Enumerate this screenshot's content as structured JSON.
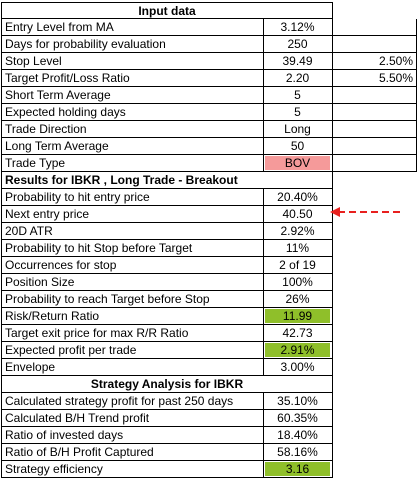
{
  "sections": {
    "input_title": "Input data",
    "results_title": "Results for IBKR , Long Trade - Breakout",
    "strategy_title": "Strategy Analysis for IBKR"
  },
  "input_rows": [
    {
      "label": "Entry Level from MA",
      "value": "3.12%",
      "extra": ""
    },
    {
      "label": "Days for probability evaluation",
      "value": "250",
      "extra": ""
    },
    {
      "label": "Stop Level",
      "value": "39.49",
      "extra": "2.50%"
    },
    {
      "label": "Target Profit/Loss Ratio",
      "value": "2.20",
      "extra": "5.50%"
    },
    {
      "label": "Short Term Average",
      "value": "5",
      "extra": ""
    },
    {
      "label": "Expected holding days",
      "value": "5",
      "extra": ""
    },
    {
      "label": "Trade Direction",
      "value": "Long",
      "extra": ""
    },
    {
      "label": "Long Term Average",
      "value": "50",
      "extra": ""
    },
    {
      "label": "Trade Type",
      "value": "BOV",
      "extra": "",
      "highlight": "red"
    }
  ],
  "result_rows": [
    {
      "label": "Probability to hit entry price",
      "value": "20.40%"
    },
    {
      "label": "Next entry price",
      "value": "40.50"
    },
    {
      "label": "20D ATR",
      "value": "2.92%"
    },
    {
      "label": "Probability to hit Stop before Target",
      "value": "11%"
    },
    {
      "label": "Occurrences for stop",
      "value": "2 of 19"
    },
    {
      "label": "Position Size",
      "value": "100%"
    },
    {
      "label": "Probability to reach Target before Stop",
      "value": "26%"
    },
    {
      "label": "Risk/Return Ratio",
      "value": "11.99",
      "highlight": "green"
    },
    {
      "label": "Target exit price for max R/R Ratio",
      "value": "42.73"
    },
    {
      "label": "Expected profit per trade",
      "value": "2.91%",
      "highlight": "green"
    },
    {
      "label": "Envelope",
      "value": "3.00%"
    }
  ],
  "strategy_rows": [
    {
      "label": "Calculated strategy profit for past 250 days",
      "value": "35.10%"
    },
    {
      "label": "Calculated B/H Trend profit",
      "value": "60.35%"
    },
    {
      "label": "Ratio of invested days",
      "value": "18.40%"
    },
    {
      "label": "Ratio of B/H Profit Captured",
      "value": "58.16%"
    },
    {
      "label": "Strategy efficiency",
      "value": "3.16",
      "highlight": "green"
    }
  ],
  "colors": {
    "highlight_red": "#f59a9a",
    "highlight_green": "#8fbf2a",
    "arrow": "#e8201e"
  },
  "icons": {
    "arrow": "red-dashed-left-arrow-icon"
  }
}
